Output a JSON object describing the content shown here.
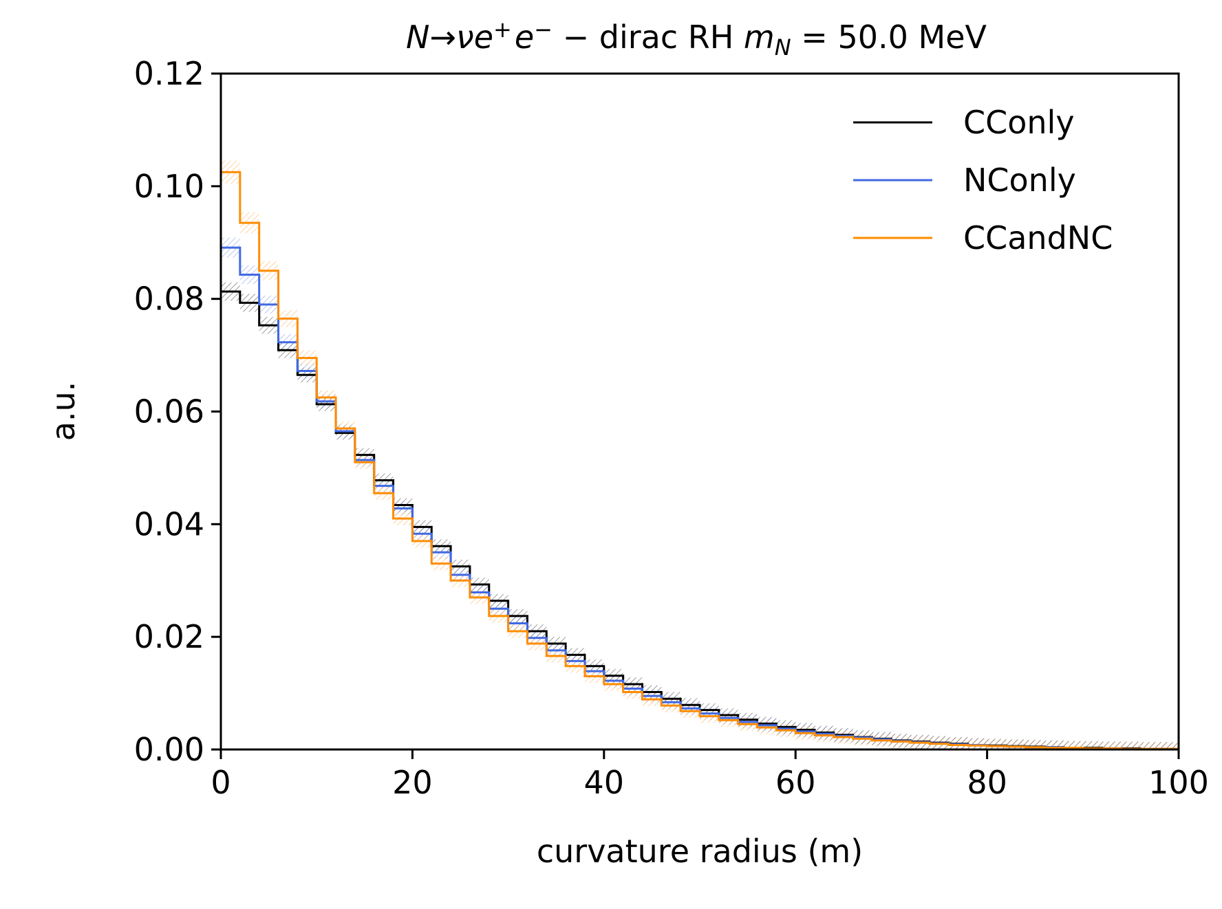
{
  "chart_data": {
    "type": "line",
    "drawstyle": "steps",
    "title_parts": {
      "N": "N",
      "arrow": "→",
      "nu": "ν",
      "e1": "e",
      "plus": "+",
      "e2": "e",
      "minus": "−",
      "middle": " − dirac RH ",
      "m": "m",
      "sub_N": "N",
      "value": " = 50.0 MeV"
    },
    "xlabel": "curvature radius (m)",
    "ylabel": "a.u.",
    "xlim": [
      0,
      100
    ],
    "ylim": [
      0,
      0.12
    ],
    "xticks": [
      0,
      20,
      40,
      60,
      80,
      100
    ],
    "xtick_labels": [
      "0",
      "20",
      "40",
      "60",
      "80",
      "100"
    ],
    "yticks": [
      0.0,
      0.02,
      0.04,
      0.06,
      0.08,
      0.1,
      0.12
    ],
    "ytick_labels": [
      "0.00",
      "0.02",
      "0.04",
      "0.06",
      "0.08",
      "0.10",
      "0.12"
    ],
    "grid": false,
    "legend_position": "top-right",
    "bin_edges": [
      0,
      2,
      4,
      6,
      8,
      10,
      12,
      14,
      16,
      18,
      20,
      22,
      24,
      26,
      28,
      30,
      32,
      34,
      36,
      38,
      40,
      42,
      44,
      46,
      48,
      50,
      52,
      54,
      56,
      58,
      60,
      62,
      64,
      66,
      68,
      70,
      72,
      74,
      76,
      78,
      80,
      82,
      84,
      86,
      88,
      90,
      92,
      94,
      96,
      98,
      100
    ],
    "series": [
      {
        "name": "CConly",
        "color": "#000000",
        "values": [
          0.0813,
          0.0793,
          0.0753,
          0.0709,
          0.0665,
          0.0613,
          0.0562,
          0.0523,
          0.0478,
          0.0434,
          0.0395,
          0.0361,
          0.0325,
          0.0293,
          0.0264,
          0.0237,
          0.021,
          0.0188,
          0.0168,
          0.0148,
          0.0131,
          0.0116,
          0.0102,
          0.009,
          0.0079,
          0.007,
          0.0061,
          0.0053,
          0.0046,
          0.004,
          0.0035,
          0.003,
          0.0026,
          0.0022,
          0.0019,
          0.0016,
          0.0014,
          0.0012,
          0.001,
          0.0008,
          0.0007,
          0.0006,
          0.0005,
          0.0004,
          0.0003,
          0.0003,
          0.0002,
          0.0002,
          0.0001,
          0.0001
        ]
      },
      {
        "name": "NConly",
        "color": "#4169e1",
        "values": [
          0.0891,
          0.0843,
          0.079,
          0.0723,
          0.0672,
          0.0618,
          0.0565,
          0.0514,
          0.0468,
          0.0428,
          0.0383,
          0.035,
          0.031,
          0.0279,
          0.025,
          0.0224,
          0.0198,
          0.0176,
          0.0157,
          0.0139,
          0.0122,
          0.0108,
          0.0095,
          0.0084,
          0.0073,
          0.0064,
          0.0056,
          0.0049,
          0.0043,
          0.0037,
          0.0032,
          0.0028,
          0.0024,
          0.0021,
          0.0018,
          0.0015,
          0.0013,
          0.0011,
          0.0009,
          0.0008,
          0.0006,
          0.0005,
          0.0004,
          0.0004,
          0.0003,
          0.0002,
          0.0002,
          0.0001,
          0.0001,
          0.0001
        ]
      },
      {
        "name": "CCandNC",
        "color": "#ff8c00",
        "values": [
          0.1025,
          0.0935,
          0.085,
          0.0765,
          0.0695,
          0.0625,
          0.057,
          0.051,
          0.0455,
          0.041,
          0.037,
          0.033,
          0.03,
          0.027,
          0.0237,
          0.021,
          0.0188,
          0.0166,
          0.0148,
          0.013,
          0.0116,
          0.0102,
          0.0089,
          0.0078,
          0.0068,
          0.0059,
          0.0052,
          0.0045,
          0.0039,
          0.0034,
          0.0029,
          0.0025,
          0.0022,
          0.0019,
          0.0016,
          0.0014,
          0.0012,
          0.001,
          0.0008,
          0.0007,
          0.0006,
          0.0005,
          0.0004,
          0.0003,
          0.0003,
          0.0002,
          0.0002,
          0.0001,
          0.0001,
          0.0001
        ]
      }
    ]
  }
}
